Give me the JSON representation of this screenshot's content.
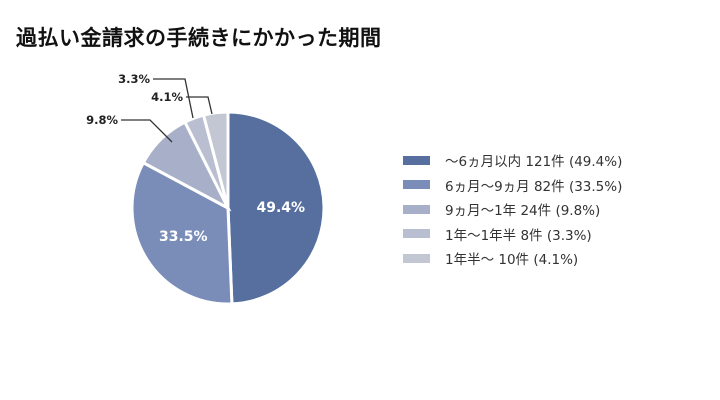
{
  "title": "過払い金請求の手続きにかかった期間",
  "chart_data": {
    "type": "pie",
    "title": "過払い金請求の手続きにかかった期間",
    "start_angle": "12 o'clock, clockwise",
    "legend_position": "right",
    "slices": [
      {
        "label": "〜6ヵ月以内",
        "count": 121,
        "percent": 49.4,
        "percent_label": "49.4%",
        "color": "#566f9f",
        "legend_text": "〜6ヵ月以内  121件 (49.4%)",
        "label_inside": true
      },
      {
        "label": "6ヵ月〜9ヵ月",
        "count": 82,
        "percent": 33.5,
        "percent_label": "33.5%",
        "color": "#7a8db8",
        "legend_text": "6ヵ月〜9ヵ月  82件 (33.5%)",
        "label_inside": true
      },
      {
        "label": "9ヵ月〜1年",
        "count": 24,
        "percent": 9.8,
        "percent_label": "9.8%",
        "color": "#a7b0c8",
        "legend_text": "9ヵ月〜1年  24件 (9.8%)",
        "label_inside": false
      },
      {
        "label": "1年〜1年半",
        "count": 8,
        "percent": 3.3,
        "percent_label": "3.3%",
        "color": "#b9bfd1",
        "legend_text": "1年〜1年半  8件 (3.3%)",
        "label_inside": false
      },
      {
        "label": "1年半〜",
        "count": 10,
        "percent": 4.1,
        "percent_label": "4.1%",
        "color": "#c3c7d3",
        "legend_text": "1年半〜  10件 (4.1%)",
        "label_inside": false
      }
    ]
  }
}
